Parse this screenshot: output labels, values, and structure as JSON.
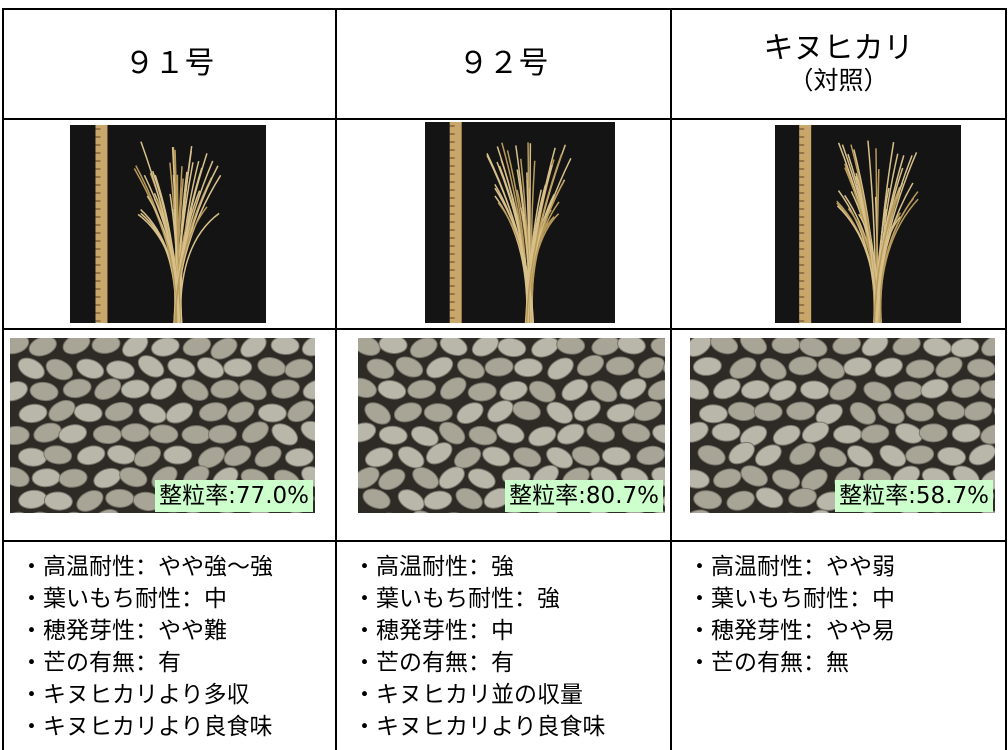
{
  "columns": [
    {
      "header": {
        "name": "９１号"
      },
      "grain_rate": "整粒率:77.0%",
      "traits": [
        "・高温耐性：やや強～強",
        "・葉いもち耐性：中",
        "・穂発芽性：やや難",
        "・芒の有無：有",
        "・キヌヒカリより多収",
        "・キヌヒカリより良食味"
      ]
    },
    {
      "header": {
        "name": "９２号"
      },
      "grain_rate": "整粒率:80.7%",
      "traits": [
        "・高温耐性：強",
        "・葉いもち耐性：強",
        "・穂発芽性：中",
        "・芒の有無：有",
        "・キヌヒカリ並の収量",
        "・キヌヒカリより良食味"
      ]
    },
    {
      "header": {
        "name": "キヌヒカリ",
        "note": "（対照）"
      },
      "grain_rate": "整粒率:58.7%",
      "traits": [
        "・高温耐性：やや弱",
        "・葉いもち耐性：中",
        "・穂発芽性：やや易",
        "・芒の有無：無"
      ]
    }
  ]
}
